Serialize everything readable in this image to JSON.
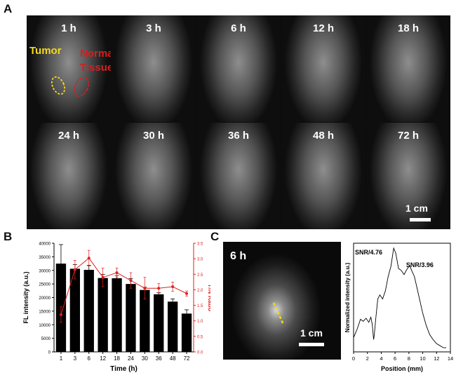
{
  "labels": {
    "A": "A",
    "B": "B",
    "C": "C"
  },
  "panel_a": {
    "timepoints": [
      "1 h",
      "3 h",
      "6 h",
      "12 h",
      "18 h",
      "24 h",
      "30 h",
      "36 h",
      "48 h",
      "72 h"
    ],
    "tumor_label": "Tumor",
    "normal_label_line1": "Normal",
    "normal_label_line2": "Tissue",
    "scale_label": "1 cm",
    "colors": {
      "tumor": "#f2d91b",
      "normal": "#d42020"
    }
  },
  "panel_c": {
    "image_label": "6 h",
    "scale_label": "1 cm",
    "line_color": "#f2d91b"
  },
  "chart_data": [
    {
      "type": "bar",
      "categories": [
        "1",
        "3",
        "6",
        "12",
        "18",
        "24",
        "30",
        "36",
        "48",
        "72"
      ],
      "xlabel": "Time (h)",
      "ylabel": "FL intensity (a.u.)",
      "y2label": "T/N Ratio",
      "ylim": [
        0,
        40000
      ],
      "yticks": [
        "0",
        "5000",
        "10000",
        "15000",
        "20000",
        "25000",
        "30000",
        "35000",
        "40000"
      ],
      "y2lim": [
        0,
        3.5
      ],
      "y2ticks": [
        "0.0",
        "0.5",
        "1.0",
        "1.5",
        "2.0",
        "2.5",
        "3.0",
        "3.5"
      ],
      "series": [
        {
          "values": [
            32500,
            30600,
            30200,
            27200,
            27100,
            25000,
            22800,
            21200,
            18500,
            14100
          ],
          "errors": [
            7000,
            1500,
            1700,
            1300,
            1000,
            2000,
            1000,
            600,
            1000,
            1400
          ],
          "color": "#000000"
        },
        {
          "values": [
            1.2,
            2.65,
            3.02,
            2.4,
            2.55,
            2.3,
            2.05,
            2.05,
            2.1,
            1.88
          ],
          "errors": [
            0.25,
            0.3,
            0.25,
            0.3,
            0.15,
            0.25,
            0.35,
            0.15,
            0.15,
            0.08
          ],
          "color": "#e02020",
          "axis": "right"
        }
      ]
    },
    {
      "type": "line",
      "xlabel": "Position (mm)",
      "ylabel": "Normalized intensity (a.u.)",
      "xlim": [
        0,
        14
      ],
      "xticks": [
        "0",
        "2",
        "4",
        "6",
        "8",
        "10",
        "12",
        "14"
      ],
      "annotations": [
        {
          "text": "SNR/4.76"
        },
        {
          "text": "SNR/3.96"
        }
      ],
      "series": [
        {
          "x": [
            0.0,
            0.5,
            1.0,
            1.4,
            1.8,
            2.2,
            2.5,
            2.7,
            2.9,
            3.0,
            3.2,
            3.5,
            3.8,
            4.2,
            4.6,
            5.0,
            5.4,
            5.8,
            6.1,
            6.5,
            6.9,
            7.3,
            7.7,
            8.1,
            8.4,
            8.8,
            9.2,
            9.6,
            10.0,
            10.5,
            11.0,
            11.5,
            12.0,
            12.5,
            13.0,
            13.4
          ],
          "y": [
            0.12,
            0.2,
            0.3,
            0.28,
            0.31,
            0.27,
            0.32,
            0.25,
            0.1,
            0.15,
            0.3,
            0.5,
            0.54,
            0.5,
            0.58,
            0.72,
            0.82,
            1.0,
            0.95,
            0.8,
            0.78,
            0.74,
            0.79,
            0.83,
            0.78,
            0.72,
            0.6,
            0.48,
            0.36,
            0.24,
            0.15,
            0.1,
            0.06,
            0.04,
            0.02,
            0.02
          ],
          "color": "#000000"
        }
      ]
    }
  ]
}
